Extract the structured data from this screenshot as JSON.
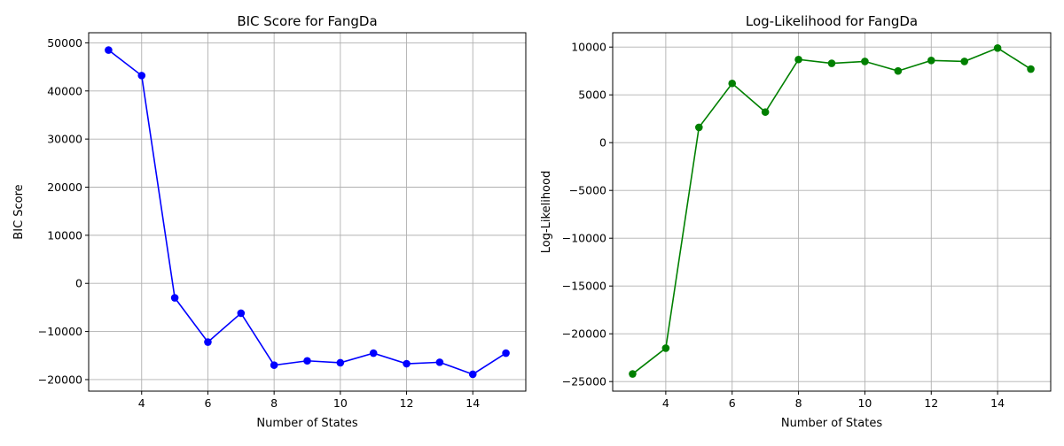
{
  "chart_data": [
    {
      "type": "line",
      "title": "BIC Score for FangDa",
      "xlabel": "Number of States",
      "ylabel": "BIC Score",
      "x": [
        3,
        4,
        5,
        6,
        7,
        8,
        9,
        10,
        11,
        12,
        13,
        14,
        15
      ],
      "series": [
        {
          "values": [
            48500,
            43200,
            -3000,
            -12200,
            -6200,
            -17000,
            -16100,
            -16500,
            -14500,
            -16700,
            -16400,
            -18900,
            -14500
          ],
          "color": "#0000ff",
          "marker": "circle"
        }
      ],
      "xlim": [
        2.4,
        15.6
      ],
      "ylim": [
        -22400,
        52100
      ],
      "xticks": [
        4,
        6,
        8,
        10,
        12,
        14
      ],
      "xtick_labels": [
        "4",
        "6",
        "8",
        "10",
        "12",
        "14"
      ],
      "yticks": [
        -20000,
        -10000,
        0,
        10000,
        20000,
        30000,
        40000,
        50000
      ],
      "ytick_labels": [
        "−20000",
        "−10000",
        "0",
        "10000",
        "20000",
        "30000",
        "40000",
        "50000"
      ],
      "grid": true
    },
    {
      "type": "line",
      "title": "Log-Likelihood for FangDa",
      "xlabel": "Number of States",
      "ylabel": "Log-Likelihood",
      "x": [
        3,
        4,
        5,
        6,
        7,
        8,
        9,
        10,
        11,
        12,
        13,
        14,
        15
      ],
      "series": [
        {
          "values": [
            -24200,
            -21500,
            1600,
            6200,
            3200,
            8700,
            8300,
            8500,
            7500,
            8600,
            8500,
            9900,
            7700
          ],
          "color": "#008000",
          "marker": "circle"
        }
      ],
      "xlim": [
        2.4,
        15.6
      ],
      "ylim": [
        -26000,
        11500
      ],
      "xticks": [
        4,
        6,
        8,
        10,
        12,
        14
      ],
      "xtick_labels": [
        "4",
        "6",
        "8",
        "10",
        "12",
        "14"
      ],
      "yticks": [
        -25000,
        -20000,
        -15000,
        -10000,
        -5000,
        0,
        5000,
        10000
      ],
      "ytick_labels": [
        "−25000",
        "−20000",
        "−15000",
        "−10000",
        "−5000",
        "0",
        "5000",
        "10000"
      ],
      "grid": true
    }
  ]
}
